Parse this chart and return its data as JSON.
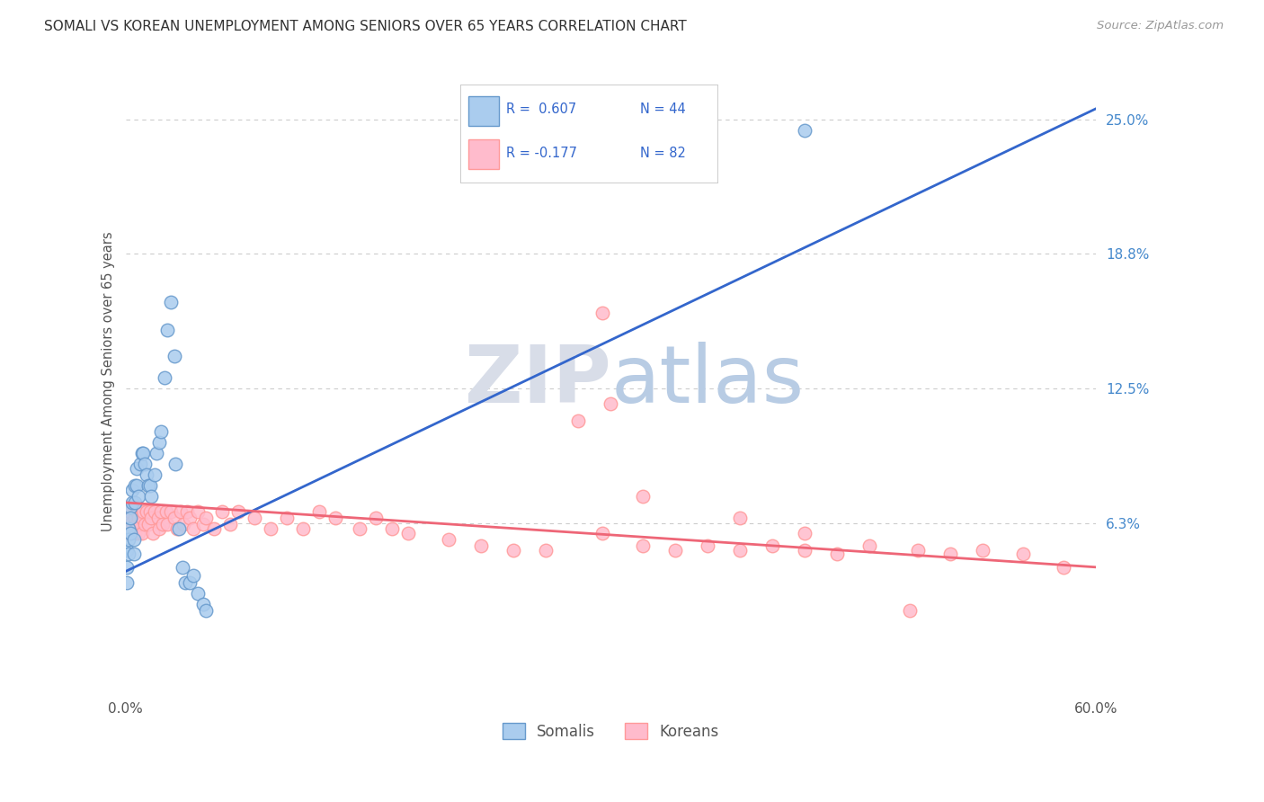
{
  "title": "SOMALI VS KOREAN UNEMPLOYMENT AMONG SENIORS OVER 65 YEARS CORRELATION CHART",
  "source": "Source: ZipAtlas.com",
  "ylabel": "Unemployment Among Seniors over 65 years",
  "xlim": [
    0.0,
    0.6
  ],
  "ylim": [
    -0.018,
    0.275
  ],
  "xticks": [
    0.0,
    0.1,
    0.2,
    0.3,
    0.4,
    0.5,
    0.6
  ],
  "xticklabels": [
    "0.0%",
    "",
    "",
    "",
    "",
    "",
    "60.0%"
  ],
  "ytick_vals": [
    0.0625,
    0.125,
    0.1875,
    0.25
  ],
  "ytick_labels": [
    "6.3%",
    "12.5%",
    "18.8%",
    "25.0%"
  ],
  "grid_dashes": [
    4,
    4
  ],
  "grid_color": "#cccccc",
  "somali_face": "#aaccee",
  "somali_edge": "#6699cc",
  "korean_face": "#ffbbcc",
  "korean_edge": "#ff9999",
  "trend_somali_color": "#3366cc",
  "trend_korean_color": "#ee6677",
  "trend_somali_x0": 0.0,
  "trend_somali_y0": 0.04,
  "trend_somali_x1": 0.6,
  "trend_somali_y1": 0.255,
  "trend_korean_x0": 0.0,
  "trend_korean_y0": 0.072,
  "trend_korean_x1": 0.6,
  "trend_korean_y1": 0.042,
  "somali_x": [
    0.001,
    0.001,
    0.001,
    0.002,
    0.002,
    0.002,
    0.003,
    0.003,
    0.003,
    0.004,
    0.004,
    0.005,
    0.005,
    0.006,
    0.006,
    0.007,
    0.007,
    0.008,
    0.009,
    0.01,
    0.011,
    0.012,
    0.013,
    0.014,
    0.015,
    0.016,
    0.018,
    0.019,
    0.021,
    0.022,
    0.024,
    0.026,
    0.028,
    0.03,
    0.031,
    0.033,
    0.035,
    0.037,
    0.04,
    0.042,
    0.045,
    0.048,
    0.05,
    0.42
  ],
  "somali_y": [
    0.05,
    0.042,
    0.035,
    0.06,
    0.055,
    0.048,
    0.07,
    0.065,
    0.058,
    0.078,
    0.072,
    0.055,
    0.048,
    0.08,
    0.072,
    0.088,
    0.08,
    0.075,
    0.09,
    0.095,
    0.095,
    0.09,
    0.085,
    0.08,
    0.08,
    0.075,
    0.085,
    0.095,
    0.1,
    0.105,
    0.13,
    0.152,
    0.165,
    0.14,
    0.09,
    0.06,
    0.042,
    0.035,
    0.035,
    0.038,
    0.03,
    0.025,
    0.022,
    0.245
  ],
  "korean_x": [
    0.001,
    0.002,
    0.002,
    0.003,
    0.004,
    0.004,
    0.005,
    0.005,
    0.006,
    0.006,
    0.007,
    0.007,
    0.008,
    0.008,
    0.009,
    0.01,
    0.01,
    0.011,
    0.012,
    0.013,
    0.014,
    0.015,
    0.016,
    0.017,
    0.018,
    0.02,
    0.021,
    0.022,
    0.023,
    0.025,
    0.026,
    0.028,
    0.03,
    0.032,
    0.034,
    0.036,
    0.038,
    0.04,
    0.042,
    0.045,
    0.048,
    0.05,
    0.055,
    0.06,
    0.065,
    0.07,
    0.08,
    0.09,
    0.1,
    0.11,
    0.12,
    0.13,
    0.145,
    0.155,
    0.165,
    0.175,
    0.2,
    0.22,
    0.24,
    0.26,
    0.28,
    0.295,
    0.32,
    0.34,
    0.36,
    0.38,
    0.4,
    0.42,
    0.44,
    0.46,
    0.49,
    0.51,
    0.53,
    0.555,
    0.3,
    0.32,
    0.38,
    0.42,
    0.58,
    0.295,
    0.485
  ],
  "korean_y": [
    0.06,
    0.065,
    0.058,
    0.068,
    0.063,
    0.058,
    0.07,
    0.062,
    0.065,
    0.058,
    0.068,
    0.062,
    0.065,
    0.058,
    0.062,
    0.065,
    0.058,
    0.068,
    0.062,
    0.068,
    0.062,
    0.068,
    0.065,
    0.058,
    0.068,
    0.065,
    0.06,
    0.068,
    0.062,
    0.068,
    0.062,
    0.068,
    0.065,
    0.06,
    0.068,
    0.062,
    0.068,
    0.065,
    0.06,
    0.068,
    0.062,
    0.065,
    0.06,
    0.068,
    0.062,
    0.068,
    0.065,
    0.06,
    0.065,
    0.06,
    0.068,
    0.065,
    0.06,
    0.065,
    0.06,
    0.058,
    0.055,
    0.052,
    0.05,
    0.05,
    0.11,
    0.058,
    0.052,
    0.05,
    0.052,
    0.05,
    0.052,
    0.05,
    0.048,
    0.052,
    0.05,
    0.048,
    0.05,
    0.048,
    0.118,
    0.075,
    0.065,
    0.058,
    0.042,
    0.16,
    0.022
  ]
}
